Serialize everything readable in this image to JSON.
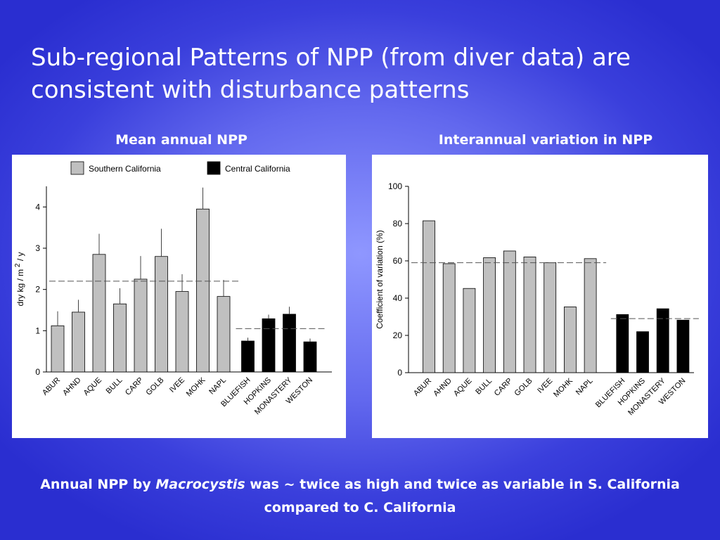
{
  "slide": {
    "title": "Sub-regional Patterns of NPP (from diver data) are consistent with disturbance patterns",
    "footer": {
      "part1": "Annual NPP by ",
      "italic": "Macrocystis",
      "part2": " was ~ twice as high and twice as  variable in S. California compared to C. California"
    }
  },
  "chart_data": [
    {
      "type": "bar",
      "heading": "Mean annual NPP",
      "title": "",
      "xlabel": "",
      "ylabel": "dry kg / m",
      "ylabel_sup": "2",
      "ylabel_tail": " / y",
      "ylim": [
        0,
        4.5
      ],
      "yticks": [
        "0",
        "1",
        "2",
        "3",
        "4"
      ],
      "categories": [
        "ABUR",
        "AHND",
        "AQUE",
        "BULL",
        "CARP",
        "GOLB",
        "IVEE",
        "MOHK",
        "NAPL",
        "BLUEFISH",
        "HOPKINS",
        "MONASTERY",
        "WESTON"
      ],
      "groups": [
        "south",
        "south",
        "south",
        "south",
        "south",
        "south",
        "south",
        "south",
        "south",
        "central",
        "central",
        "central",
        "central"
      ],
      "values": [
        1.12,
        1.45,
        2.85,
        1.65,
        2.25,
        2.8,
        1.95,
        3.95,
        1.83,
        0.75,
        1.29,
        1.4,
        0.73
      ],
      "errors": [
        0.35,
        0.3,
        0.5,
        0.38,
        0.56,
        0.67,
        0.42,
        0.52,
        0.4,
        0.08,
        0.1,
        0.18,
        0.08
      ],
      "reference_lines": [
        {
          "group": "south",
          "value": 2.2
        },
        {
          "group": "central",
          "value": 1.05
        }
      ],
      "legend": [
        {
          "label": "Southern California",
          "color": "#c0c0c0"
        },
        {
          "label": "Central California",
          "color": "#000000"
        }
      ],
      "legend_position": "top",
      "grid": false
    },
    {
      "type": "bar",
      "heading": "Interannual variation in NPP",
      "title": "",
      "xlabel": "",
      "ylabel": "Coefficient of variation (%)",
      "ylim": [
        0,
        100
      ],
      "yticks": [
        "0",
        "20",
        "40",
        "60",
        "80",
        "100"
      ],
      "categories": [
        "ABUR",
        "AHND",
        "AQUE",
        "BULL",
        "CARP",
        "GOLB",
        "IVEE",
        "MOHK",
        "NAPL",
        "BLUEFISH",
        "HOPKINS",
        "MONASTERY",
        "WESTON"
      ],
      "groups": [
        "south",
        "south",
        "south",
        "south",
        "south",
        "south",
        "south",
        "south",
        "south",
        "central",
        "central",
        "central",
        "central"
      ],
      "values": [
        81.5,
        58.5,
        45.2,
        61.7,
        65.3,
        62.1,
        59.0,
        35.3,
        61.2,
        31.2,
        22.0,
        34.3,
        28.2
      ],
      "reference_lines": [
        {
          "group": "south",
          "value": 59
        },
        {
          "group": "central",
          "value": 29
        }
      ],
      "grid": false
    }
  ],
  "colors": {
    "south_bar": "#c0c0c0",
    "central_bar": "#000000",
    "axis": "#000000"
  }
}
